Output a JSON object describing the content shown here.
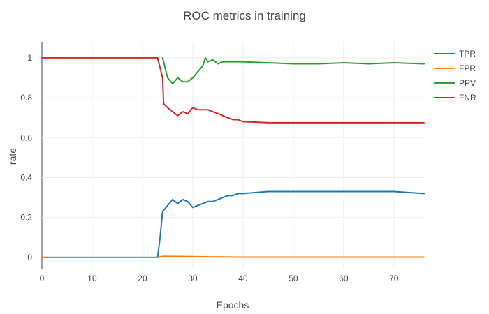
{
  "chart_data": {
    "type": "line",
    "title": "ROC metrics in training",
    "xlabel": "Epochs",
    "ylabel": "rate",
    "xlim": [
      0,
      76
    ],
    "ylim": [
      -0.06,
      1.08
    ],
    "x_ticks": [
      0,
      10,
      20,
      30,
      40,
      50,
      60,
      70
    ],
    "y_ticks": [
      0,
      0.2,
      0.4,
      0.6,
      0.8,
      1
    ],
    "x_tick_labels": [
      "0",
      "10",
      "20",
      "30",
      "40",
      "50",
      "60",
      "70"
    ],
    "y_tick_labels": [
      "0",
      "0.2",
      "0.4",
      "0.6",
      "0.8",
      "1"
    ],
    "grid": true,
    "legend_position": "top-right",
    "series": [
      {
        "name": "TPR",
        "color": "#1f77b4",
        "points": [
          [
            0,
            0
          ],
          [
            23,
            0
          ],
          [
            23.5,
            0.1
          ],
          [
            24,
            0.23
          ],
          [
            25,
            0.26
          ],
          [
            26,
            0.29
          ],
          [
            27,
            0.27
          ],
          [
            28,
            0.29
          ],
          [
            29,
            0.28
          ],
          [
            30,
            0.25
          ],
          [
            31,
            0.26
          ],
          [
            32,
            0.27
          ],
          [
            33,
            0.28
          ],
          [
            34,
            0.28
          ],
          [
            35,
            0.29
          ],
          [
            36,
            0.3
          ],
          [
            37,
            0.31
          ],
          [
            38,
            0.31
          ],
          [
            39,
            0.32
          ],
          [
            40,
            0.32
          ],
          [
            45,
            0.33
          ],
          [
            50,
            0.33
          ],
          [
            60,
            0.33
          ],
          [
            70,
            0.33
          ],
          [
            76,
            0.32
          ]
        ]
      },
      {
        "name": "FPR",
        "color": "#ff7f0e",
        "points": [
          [
            0,
            0
          ],
          [
            23,
            0
          ],
          [
            24,
            0.005
          ],
          [
            30,
            0.004
          ],
          [
            35,
            0.002
          ],
          [
            40,
            0.001
          ],
          [
            76,
            0.001
          ]
        ]
      },
      {
        "name": "PPV",
        "color": "#2ca02c",
        "points": [
          [
            24,
            1
          ],
          [
            25,
            0.9
          ],
          [
            26,
            0.87
          ],
          [
            27,
            0.9
          ],
          [
            28,
            0.88
          ],
          [
            29,
            0.88
          ],
          [
            30,
            0.9
          ],
          [
            31,
            0.93
          ],
          [
            32,
            0.96
          ],
          [
            32.5,
            1
          ],
          [
            33,
            0.98
          ],
          [
            34,
            0.99
          ],
          [
            35,
            0.97
          ],
          [
            36,
            0.98
          ],
          [
            40,
            0.98
          ],
          [
            45,
            0.975
          ],
          [
            50,
            0.97
          ],
          [
            55,
            0.97
          ],
          [
            60,
            0.975
          ],
          [
            65,
            0.97
          ],
          [
            70,
            0.975
          ],
          [
            76,
            0.97
          ]
        ]
      },
      {
        "name": "FNR",
        "color": "#d62728",
        "points": [
          [
            0,
            1
          ],
          [
            23,
            1
          ],
          [
            24,
            0.9
          ],
          [
            24.2,
            0.77
          ],
          [
            25,
            0.75
          ],
          [
            26,
            0.73
          ],
          [
            27,
            0.71
          ],
          [
            28,
            0.73
          ],
          [
            29,
            0.72
          ],
          [
            30,
            0.75
          ],
          [
            31,
            0.74
          ],
          [
            32,
            0.74
          ],
          [
            33,
            0.74
          ],
          [
            34,
            0.73
          ],
          [
            35,
            0.72
          ],
          [
            36,
            0.71
          ],
          [
            37,
            0.7
          ],
          [
            38,
            0.69
          ],
          [
            39,
            0.69
          ],
          [
            40,
            0.68
          ],
          [
            45,
            0.675
          ],
          [
            50,
            0.675
          ],
          [
            55,
            0.675
          ],
          [
            60,
            0.675
          ],
          [
            65,
            0.675
          ],
          [
            70,
            0.675
          ],
          [
            76,
            0.675
          ]
        ]
      }
    ]
  }
}
